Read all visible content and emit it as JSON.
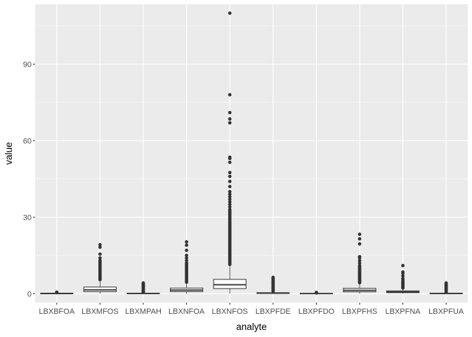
{
  "chart_data": {
    "type": "boxplot",
    "xlabel": "analyte",
    "ylabel": "value",
    "ylim": [
      -3.5,
      113.5
    ],
    "yticks": [
      0,
      30,
      60,
      90
    ],
    "ytick_labels": [
      "0",
      "30",
      "60",
      "90"
    ],
    "grid": true,
    "legend": "none",
    "colors": {
      "panel": "#ebebeb",
      "grid_major": "#ffffff",
      "box_fill": "#ffffff",
      "box_line": "#333333",
      "outlier": "#333333"
    },
    "categories": [
      "LBXBFOA",
      "LBXMFOS",
      "LBXMPAH",
      "LBXNFOA",
      "LBXNFOS",
      "LBXPFDE",
      "LBXPFDO",
      "LBXPFHS",
      "LBXPFNA",
      "LBXPFUA"
    ],
    "boxes": [
      {
        "category": "LBXBFOA",
        "lower_whisker": 0.0,
        "q1": 0.05,
        "median": 0.1,
        "q3": 0.15,
        "upper_whisker": 0.3,
        "outliers": [
          0.4,
          0.5,
          0.6
        ]
      },
      {
        "category": "LBXMFOS",
        "lower_whisker": 0.0,
        "q1": 0.8,
        "median": 1.5,
        "q3": 2.6,
        "upper_whisker": 5.2,
        "outliers": [
          5.5,
          6.0,
          6.5,
          7.0,
          7.5,
          8.0,
          8.5,
          9.0,
          9.5,
          10.0,
          10.5,
          11.0,
          11.5,
          12.0,
          12.5,
          13.0,
          14.0,
          15.5,
          18.2,
          19.2
        ]
      },
      {
        "category": "LBXMPAH",
        "lower_whisker": 0.0,
        "q1": 0.05,
        "median": 0.1,
        "q3": 0.2,
        "upper_whisker": 0.4,
        "outliers": [
          0.5,
          0.8,
          1.1,
          1.4,
          1.7,
          2.0,
          2.3,
          2.6,
          2.9,
          3.2,
          3.5,
          3.8,
          4.2
        ]
      },
      {
        "category": "LBXNFOA",
        "lower_whisker": 0.0,
        "q1": 0.8,
        "median": 1.4,
        "q3": 2.2,
        "upper_whisker": 4.2,
        "outliers": [
          4.5,
          5.0,
          5.5,
          6.0,
          6.5,
          7.0,
          7.5,
          8.0,
          8.5,
          9.0,
          9.5,
          10.0,
          10.5,
          11.0,
          11.5,
          12.0,
          13.0,
          14.0,
          15.0,
          17.0,
          19.0,
          20.3
        ]
      },
      {
        "category": "LBXNFOS",
        "lower_whisker": 0.0,
        "q1": 2.0,
        "median": 3.5,
        "q3": 5.6,
        "upper_whisker": 11.0,
        "outliers": [
          11.5,
          12.0,
          12.5,
          13.0,
          13.5,
          14.0,
          14.5,
          15.0,
          15.5,
          16.0,
          16.5,
          17.0,
          17.5,
          18.0,
          18.5,
          19.0,
          19.5,
          20.0,
          20.5,
          21.0,
          21.5,
          22.0,
          22.5,
          23.0,
          23.5,
          24.0,
          24.5,
          25.0,
          25.5,
          26.0,
          26.5,
          27.0,
          27.5,
          28.0,
          28.5,
          29.0,
          29.5,
          30.0,
          30.5,
          31.0,
          31.5,
          32.0,
          32.5,
          33.0,
          34.0,
          35.0,
          36.0,
          37.0,
          38.0,
          39.0,
          40.0,
          42.0,
          44.0,
          46.0,
          47.5,
          51.5,
          53.0,
          53.5,
          67.0,
          68.5,
          71.0,
          78.0,
          110.0
        ]
      },
      {
        "category": "LBXPFDE",
        "lower_whisker": 0.0,
        "q1": 0.1,
        "median": 0.2,
        "q3": 0.4,
        "upper_whisker": 0.8,
        "outliers": [
          1.0,
          1.3,
          1.6,
          1.9,
          2.2,
          2.5,
          2.8,
          3.1,
          3.4,
          3.7,
          4.0,
          4.3,
          4.6,
          4.9,
          5.2,
          5.5,
          5.8,
          6.1,
          6.4
        ]
      },
      {
        "category": "LBXPFDO",
        "lower_whisker": 0.0,
        "q1": 0.03,
        "median": 0.05,
        "q3": 0.1,
        "upper_whisker": 0.2,
        "outliers": [
          0.3,
          0.5
        ]
      },
      {
        "category": "LBXPFHS",
        "lower_whisker": 0.0,
        "q1": 0.7,
        "median": 1.3,
        "q3": 2.1,
        "upper_whisker": 4.0,
        "outliers": [
          4.3,
          4.6,
          5.0,
          5.4,
          5.8,
          6.2,
          6.6,
          7.0,
          7.4,
          7.8,
          8.2,
          8.6,
          9.0,
          9.5,
          10.0,
          10.5,
          11.0,
          12.0,
          13.0,
          14.0,
          14.5,
          19.5,
          21.5,
          23.3
        ]
      },
      {
        "category": "LBXPFNA",
        "lower_whisker": 0.0,
        "q1": 0.4,
        "median": 0.7,
        "q3": 1.1,
        "upper_whisker": 2.0,
        "outliers": [
          2.2,
          2.5,
          2.8,
          3.1,
          3.4,
          3.7,
          4.0,
          4.3,
          4.6,
          5.0,
          5.5,
          6.0,
          7.0,
          8.0,
          8.5,
          11.0
        ]
      },
      {
        "category": "LBXPFUA",
        "lower_whisker": 0.0,
        "q1": 0.05,
        "median": 0.1,
        "q3": 0.2,
        "upper_whisker": 0.4,
        "outliers": [
          0.5,
          0.8,
          1.1,
          1.4,
          1.7,
          2.0,
          2.3,
          2.6,
          2.9,
          3.2,
          3.5,
          3.8,
          4.2
        ]
      }
    ]
  }
}
